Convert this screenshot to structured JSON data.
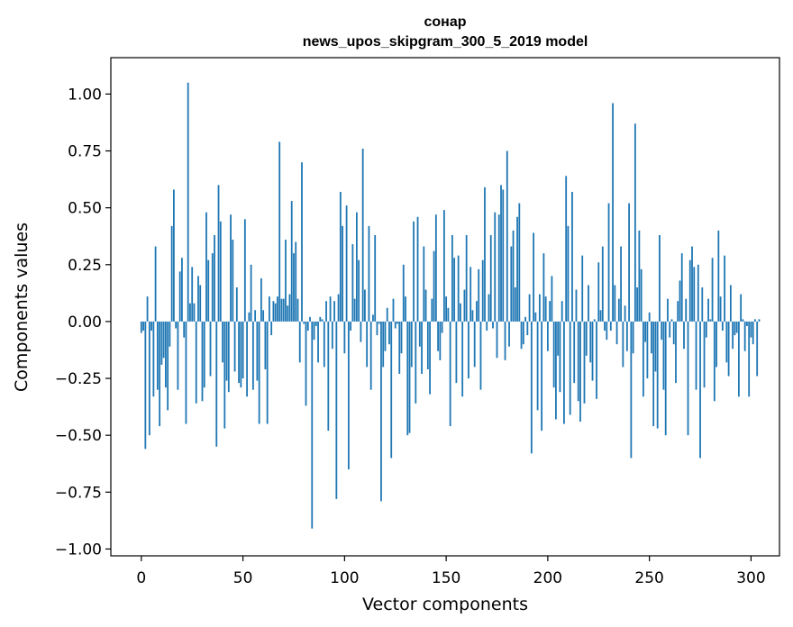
{
  "chart_data": {
    "type": "bar",
    "title": "сонар",
    "subtitle": "news_upos_skipgram_300_5_2019 model",
    "xlabel": "Vector components",
    "ylabel": "Components values",
    "xlim": [
      -15,
      314
    ],
    "ylim": [
      -1.03,
      1.16
    ],
    "xticks": [
      0,
      50,
      100,
      150,
      200,
      250,
      300
    ],
    "yticks": [
      -1.0,
      -0.75,
      -0.5,
      -0.25,
      0.0,
      0.25,
      0.5,
      0.75,
      1.0
    ],
    "xtick_labels": [
      "0",
      "50",
      "100",
      "150",
      "200",
      "250",
      "300"
    ],
    "ytick_labels": [
      "−1.00",
      "−0.75",
      "−0.50",
      "−0.25",
      "0.00",
      "0.25",
      "0.50",
      "0.75",
      "1.00"
    ],
    "bar_color": "#1f77b4",
    "values": [
      -0.05,
      -0.04,
      -0.56,
      0.11,
      -0.5,
      -0.04,
      -0.33,
      0.33,
      -0.3,
      -0.46,
      -0.19,
      -0.16,
      -0.29,
      -0.39,
      -0.11,
      0.42,
      0.58,
      -0.03,
      -0.3,
      0.22,
      0.28,
      -0.07,
      -0.45,
      1.05,
      0.08,
      0.24,
      0.08,
      -0.36,
      0.2,
      0.16,
      -0.35,
      -0.29,
      0.48,
      0.27,
      -0.24,
      0.3,
      0.38,
      -0.55,
      0.6,
      0.44,
      -0.18,
      -0.47,
      -0.26,
      -0.31,
      0.47,
      0.36,
      -0.22,
      0.15,
      -0.27,
      -0.29,
      -0.25,
      0.45,
      -0.33,
      0.04,
      0.25,
      -0.3,
      0.05,
      -0.26,
      -0.45,
      0.19,
      0.05,
      -0.21,
      -0.45,
      0.11,
      -0.06,
      0.09,
      0.08,
      0.11,
      0.79,
      0.1,
      0.1,
      0.36,
      0.07,
      0.12,
      0.53,
      0.3,
      0.35,
      0.1,
      -0.18,
      0.7,
      -0.01,
      -0.37,
      -0.04,
      0.02,
      -0.91,
      -0.08,
      -0.02,
      -0.18,
      0.02,
      0.01,
      -0.2,
      0.09,
      -0.48,
      0.11,
      -0.12,
      0.09,
      -0.78,
      0.12,
      0.57,
      0.42,
      -0.14,
      0.51,
      -0.65,
      -0.04,
      0.34,
      0.1,
      0.48,
      0.27,
      -0.09,
      0.76,
      0.14,
      -0.2,
      0.42,
      -0.3,
      0.03,
      0.38,
      -0.06,
      -0.01,
      -0.79,
      -0.2,
      -0.13,
      0.06,
      -0.1,
      -0.6,
      0.1,
      -0.03,
      -0.01,
      -0.23,
      -0.14,
      0.25,
      0.11,
      -0.5,
      -0.49,
      -0.2,
      0.44,
      -0.36,
      0.46,
      -0.11,
      -0.23,
      0.33,
      0.14,
      -0.21,
      -0.32,
      0.1,
      0.31,
      0.47,
      -0.13,
      -0.17,
      -0.05,
      0.49,
      0.11,
      0.06,
      -0.46,
      0.38,
      0.28,
      -0.27,
      0.29,
      0.08,
      -0.33,
      0.14,
      0.38,
      -0.25,
      0.24,
      0.05,
      -0.2,
      0.09,
      0.23,
      -0.3,
      0.27,
      0.59,
      -0.04,
      0.12,
      0.38,
      -0.03,
      0.48,
      -0.16,
      0.47,
      0.6,
      0.58,
      -0.17,
      0.75,
      -0.11,
      0.33,
      0.4,
      0.15,
      0.46,
      0.52,
      -0.12,
      -0.1,
      0.02,
      -0.06,
      0.12,
      -0.58,
      0.39,
      0.04,
      -0.39,
      0.12,
      -0.48,
      0.3,
      0.11,
      -0.13,
      0.09,
      0.2,
      -0.29,
      -0.43,
      -0.15,
      -0.31,
      0.09,
      -0.45,
      0.64,
      0.42,
      -0.41,
      0.57,
      -0.27,
      0.14,
      -0.35,
      -0.44,
      0.29,
      -0.36,
      -0.15,
      0.16,
      -0.18,
      -0.26,
      0.01,
      -0.34,
      0.26,
      0.05,
      0.33,
      -0.04,
      -0.08,
      0.52,
      -0.04,
      0.96,
      0.16,
      -0.1,
      0.1,
      0.33,
      -0.2,
      0.07,
      -0.13,
      0.52,
      -0.6,
      -0.14,
      0.87,
      0.15,
      0.4,
      0.23,
      -0.33,
      -0.09,
      -0.25,
      0.04,
      -0.14,
      -0.46,
      -0.22,
      -0.47,
      0.38,
      -0.08,
      -0.3,
      -0.5,
      0.1,
      -0.07,
      0.01,
      -0.1,
      -0.27,
      0.09,
      0.18,
      0.3,
      -0.12,
      0.1,
      -0.5,
      0.27,
      0.33,
      0.24,
      -0.3,
      0.25,
      -0.6,
      0.15,
      -0.29,
      -0.07,
      0.1,
      0.01,
      0.28,
      -0.35,
      -0.2,
      0.4,
      0.11,
      -0.04,
      0.29,
      -0.18,
      -0.24,
      0.16,
      -0.12,
      -0.06,
      -0.05,
      -0.33,
      0.12,
      0.01,
      -0.13,
      -0.02,
      -0.33,
      -0.07,
      -0.1,
      0.01,
      -0.24,
      0.01
    ]
  }
}
